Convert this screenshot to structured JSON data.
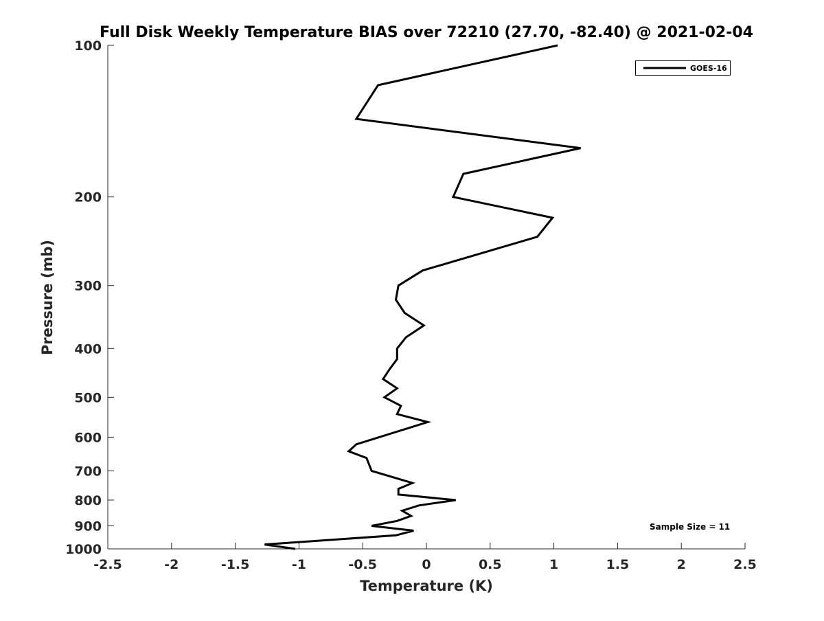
{
  "chart_data": {
    "type": "line",
    "title": "Full Disk Weekly Temperature BIAS over 72210 (27.70, -82.40) @ 2021-02-04",
    "xlabel": "Temperature (K)",
    "ylabel": "Pressure (mb)",
    "xlim": [
      -2.5,
      2.5
    ],
    "ylim": [
      100,
      1000
    ],
    "yscale": "log",
    "y_reversed": true,
    "xticks": [
      "-2.5",
      "-2",
      "-1.5",
      "-1",
      "-0.5",
      "0",
      "0.5",
      "1",
      "1.5",
      "2",
      "2.5"
    ],
    "xtick_values": [
      -2.5,
      -2,
      -1.5,
      -1,
      -0.5,
      0,
      0.5,
      1,
      1.5,
      2,
      2.5
    ],
    "yticks": [
      "100",
      "200",
      "300",
      "400",
      "500",
      "600",
      "700",
      "800",
      "900",
      "1000"
    ],
    "ytick_values": [
      100,
      200,
      300,
      400,
      500,
      600,
      700,
      800,
      900,
      1000
    ],
    "grid": false,
    "legend_position": "top-right",
    "annotation": "Sample Size = 11",
    "series": [
      {
        "name": "GOES-16",
        "color": "#000000",
        "pressure": [
          100,
          120,
          140,
          160,
          180,
          200,
          220,
          240,
          280,
          300,
          320,
          340,
          360,
          380,
          400,
          420,
          440,
          460,
          480,
          500,
          520,
          540,
          560,
          620,
          640,
          660,
          700,
          740,
          760,
          780,
          800,
          820,
          840,
          860,
          880,
          900,
          920,
          940,
          980,
          1000
        ],
        "temperature": [
          1.03,
          -0.38,
          -0.55,
          1.21,
          0.29,
          0.21,
          0.99,
          0.87,
          -0.03,
          -0.22,
          -0.24,
          -0.17,
          -0.02,
          -0.16,
          -0.23,
          -0.23,
          -0.29,
          -0.34,
          -0.23,
          -0.33,
          -0.2,
          -0.23,
          0.01,
          -0.55,
          -0.61,
          -0.47,
          -0.43,
          -0.11,
          -0.22,
          -0.22,
          0.23,
          -0.06,
          -0.19,
          -0.12,
          -0.23,
          -0.43,
          -0.1,
          -0.24,
          -1.27,
          -1.03
        ]
      }
    ]
  }
}
